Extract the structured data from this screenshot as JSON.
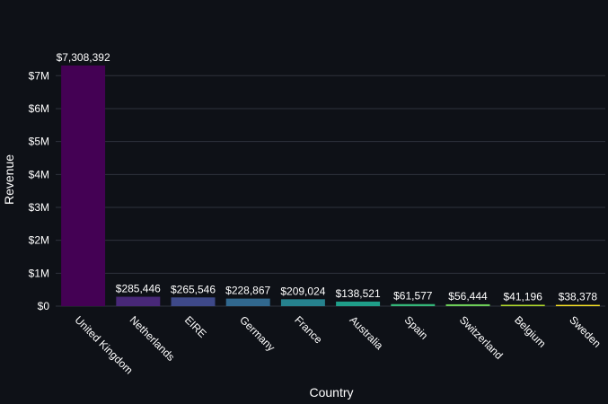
{
  "chart_data": {
    "type": "bar",
    "xlabel": "Country",
    "ylabel": "Revenue",
    "categories": [
      "United Kingdom",
      "Netherlands",
      "EIRE",
      "Germany",
      "France",
      "Australia",
      "Spain",
      "Switzerland",
      "Belgium",
      "Sweden"
    ],
    "values": [
      7308392,
      285446,
      265546,
      228867,
      209024,
      138521,
      61577,
      56444,
      41196,
      38378
    ],
    "data_labels": [
      "$7,308,392",
      "$285,446",
      "$265,546",
      "$228,867",
      "$209,024",
      "$138,521",
      "$61,577",
      "$56,444",
      "$41,196",
      "$38,378"
    ],
    "colors": [
      "#440154",
      "#482878",
      "#3e4989",
      "#31688e",
      "#26828e",
      "#1f9e89",
      "#35b779",
      "#6ece58",
      "#b5de2b",
      "#fde725"
    ],
    "yticks": [
      0,
      1000000,
      2000000,
      3000000,
      4000000,
      5000000,
      6000000,
      7000000
    ],
    "ytick_labels": [
      "$0",
      "$1M",
      "$2M",
      "$3M",
      "$4M",
      "$5M",
      "$6M",
      "$7M"
    ],
    "ylim": [
      0,
      7308392
    ],
    "grid": true,
    "background": "#0e1117",
    "grid_color": "#2f333d",
    "text_color": "#ffffff"
  }
}
